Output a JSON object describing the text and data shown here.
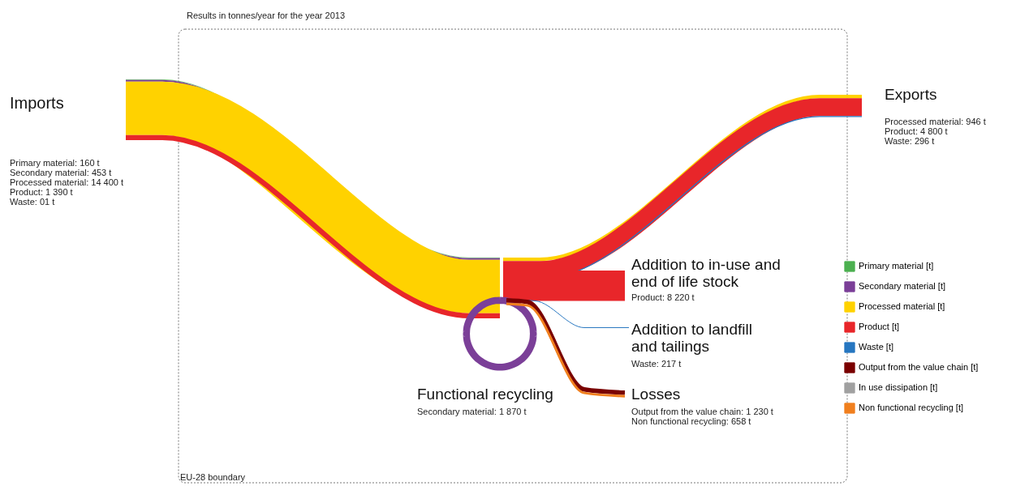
{
  "chart_data": {
    "type": "other",
    "title": "Results in tonnes/year for the year 2013",
    "categories": [
      "Imports",
      "Exports",
      "Addition to in-use and end of life stock",
      "Addition to landfill and tailings",
      "Functional recycling",
      "Losses"
    ],
    "legend": "right",
    "series": [
      {
        "name": "Primary material [t]",
        "color": "#4cb050",
        "values": [
          160,
          null,
          null,
          null,
          null,
          null
        ],
        "value_labels": [
          "Primary material: 160 t",
          null,
          null,
          null,
          null,
          null
        ]
      },
      {
        "name": "Secondary material [t]",
        "color": "#7b3f98",
        "values": [
          453,
          null,
          null,
          null,
          1870,
          null
        ],
        "value_labels": [
          "Secondary material: 453 t",
          null,
          null,
          null,
          "Secondary material: 1 870 t",
          null
        ]
      },
      {
        "name": "Processed material [t]",
        "color": "#ffd200",
        "values": [
          14400,
          946,
          null,
          null,
          null,
          null
        ],
        "value_labels": [
          "Processed material: 14 400 t",
          "Processed material: 946 t",
          null,
          null,
          null,
          null
        ]
      },
      {
        "name": "Product [t]",
        "color": "#e8262a",
        "values": [
          1390,
          4800,
          8220,
          null,
          null,
          null
        ],
        "value_labels": [
          "Product: 1 390 t",
          "Product: 4 800 t",
          "Product: 8 220 t",
          null,
          null,
          null
        ]
      },
      {
        "name": "Waste [t]",
        "color": "#2676c0",
        "values": [
          1,
          296,
          null,
          217,
          null,
          null
        ],
        "value_labels": [
          "Waste: 01 t",
          "Waste: 296 t",
          null,
          "Waste: 217 t",
          null,
          null
        ]
      },
      {
        "name": "Output from the value chain [t]",
        "color": "#7a0000",
        "values": [
          null,
          null,
          null,
          null,
          null,
          1230
        ],
        "value_labels": [
          null,
          null,
          null,
          null,
          null,
          "Output from the value chain: 1 230 t"
        ]
      },
      {
        "name": "In use dissipation [t]",
        "color": "#a0a0a0",
        "values": [
          null,
          null,
          null,
          null,
          null,
          null
        ]
      },
      {
        "name": "Non functional recycling [t]",
        "color": "#f07f1e",
        "values": [
          null,
          null,
          null,
          null,
          null,
          658
        ],
        "value_labels": [
          null,
          null,
          null,
          null,
          null,
          "Non functional recycling: 658 t"
        ]
      }
    ],
    "annotations": [
      "EU-28 boundary"
    ]
  }
}
